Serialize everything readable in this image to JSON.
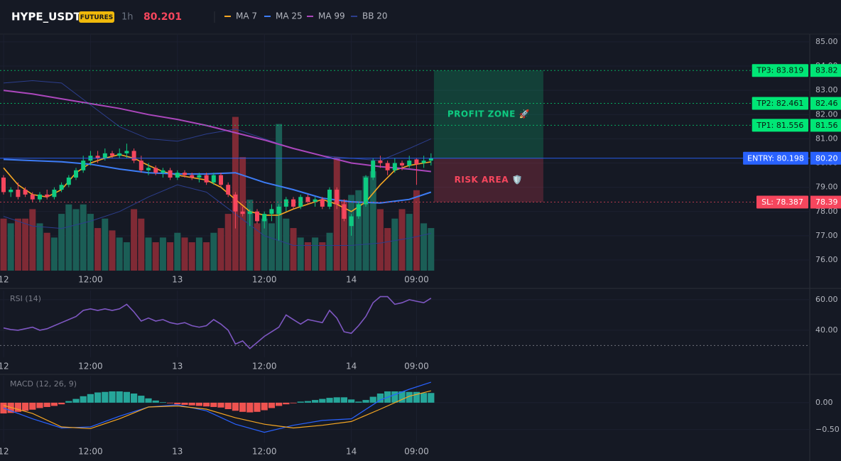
{
  "header": {
    "symbol": "HYPE_USDT",
    "badge": "FUTURES",
    "interval": "1h",
    "price": 80.201
  },
  "chart_data": [
    {
      "type": "candlestick",
      "xlim": [
        -0.49,
        111.27
      ],
      "xticks": [
        {
          "value": 0,
          "label": "12"
        },
        {
          "value": 12,
          "label": "12:00"
        },
        {
          "value": 24,
          "label": "13"
        },
        {
          "value": 36,
          "label": "12:00"
        },
        {
          "value": 48,
          "label": "14"
        },
        {
          "value": 57,
          "label": "09:00"
        }
      ],
      "ylim": [
        75.56,
        85.32
      ],
      "yticks": [
        {
          "value": 85,
          "label": "85.00"
        },
        {
          "value": 84,
          "label": "84.00"
        },
        {
          "value": 83,
          "label": "83.00"
        },
        {
          "value": 82,
          "label": "82.00"
        },
        {
          "value": 81,
          "label": "81.00"
        },
        {
          "value": 80,
          "label": "80.00"
        },
        {
          "value": 79,
          "label": "79.00"
        },
        {
          "value": 78,
          "label": "78.00"
        },
        {
          "value": 77,
          "label": "77.00"
        },
        {
          "value": 76,
          "label": "76.00"
        }
      ],
      "grid": true,
      "up_color": "#0ecb81",
      "down_color": "#f6465d",
      "x": [
        0,
        1,
        2,
        3,
        4,
        5,
        6,
        7,
        8,
        9,
        10,
        11,
        12,
        13,
        14,
        15,
        16,
        17,
        18,
        19,
        20,
        21,
        22,
        23,
        24,
        25,
        26,
        27,
        28,
        29,
        30,
        31,
        32,
        33,
        34,
        35,
        36,
        37,
        38,
        39,
        40,
        41,
        42,
        43,
        44,
        45,
        46,
        47,
        48,
        49,
        50,
        51,
        52,
        53,
        54,
        55,
        56,
        57,
        58,
        59
      ],
      "open": [
        79.4,
        78.8,
        78.9,
        78.9,
        78.7,
        78.5,
        78.7,
        78.6,
        78.9,
        79.1,
        79.4,
        79.7,
        80.1,
        80.3,
        80.2,
        80.4,
        80.3,
        80.4,
        80.5,
        80.1,
        79.7,
        79.8,
        79.6,
        79.7,
        79.4,
        79.6,
        79.5,
        79.4,
        79.5,
        79.2,
        79.5,
        79.1,
        78.7,
        78.0,
        77.9,
        78.0,
        77.6,
        77.9,
        77.9,
        78.2,
        78.5,
        78.2,
        78.6,
        78.4,
        78.5,
        78.2,
        78.9,
        78.3,
        77.4,
        77.8,
        78.3,
        79.4,
        80.1,
        80.0,
        79.7,
        80.0,
        79.9,
        80.15,
        80.0,
        80.1
      ],
      "high": [
        79.5,
        79.0,
        79.2,
        79.0,
        78.8,
        78.8,
        78.9,
        79.0,
        79.2,
        79.5,
        79.8,
        80.3,
        80.5,
        80.5,
        80.6,
        80.5,
        80.6,
        80.8,
        80.6,
        80.3,
        80.0,
        79.9,
        79.8,
        79.8,
        79.7,
        79.7,
        79.6,
        79.6,
        79.6,
        79.6,
        79.6,
        79.2,
        78.8,
        78.2,
        78.1,
        78.1,
        78.0,
        78.3,
        78.3,
        78.6,
        78.6,
        78.7,
        78.7,
        78.6,
        78.6,
        79.0,
        79.0,
        78.5,
        77.9,
        78.4,
        79.5,
        80.2,
        80.3,
        80.1,
        80.2,
        80.1,
        80.3,
        80.2,
        80.3,
        80.4
      ],
      "low": [
        78.7,
        78.6,
        78.5,
        78.6,
        78.4,
        78.4,
        78.5,
        78.5,
        78.8,
        79.0,
        79.3,
        79.6,
        79.9,
        80.0,
        80.1,
        80.2,
        80.2,
        80.2,
        80.0,
        79.6,
        79.5,
        79.5,
        79.4,
        79.3,
        79.3,
        79.4,
        79.3,
        79.2,
        79.1,
        79.1,
        79.0,
        78.6,
        77.3,
        77.8,
        77.4,
        77.5,
        77.3,
        77.6,
        76.8,
        78.0,
        78.1,
        78.1,
        78.3,
        78.2,
        78.1,
        78.1,
        78.1,
        77.6,
        77.0,
        77.7,
        78.2,
        79.3,
        79.8,
        79.5,
        79.6,
        79.7,
        79.8,
        79.1,
        79.8,
        79.9
      ],
      "close": [
        78.8,
        78.9,
        78.6,
        78.7,
        78.5,
        78.7,
        78.6,
        78.9,
        79.1,
        79.4,
        79.7,
        80.1,
        80.3,
        80.2,
        80.4,
        80.3,
        80.4,
        80.5,
        80.1,
        79.7,
        79.8,
        79.6,
        79.7,
        79.4,
        79.6,
        79.5,
        79.4,
        79.5,
        79.2,
        79.5,
        79.1,
        78.7,
        78.0,
        77.9,
        78.0,
        77.6,
        77.9,
        78.1,
        78.2,
        78.5,
        78.2,
        78.6,
        78.4,
        78.5,
        78.2,
        78.9,
        78.3,
        77.7,
        77.8,
        78.3,
        79.4,
        80.1,
        80.0,
        79.7,
        80.0,
        79.9,
        80.1,
        79.95,
        80.1,
        80.2
      ],
      "volume": [
        22,
        20,
        22,
        22,
        26,
        20,
        16,
        14,
        24,
        28,
        26,
        28,
        24,
        18,
        22,
        17,
        14,
        12,
        26,
        22,
        14,
        12,
        14,
        12,
        16,
        14,
        12,
        14,
        12,
        16,
        18,
        24,
        65,
        48,
        30,
        20,
        22,
        20,
        62,
        22,
        18,
        14,
        12,
        14,
        12,
        16,
        48,
        30,
        32,
        34,
        40,
        42,
        26,
        18,
        22,
        26,
        24,
        34,
        20,
        18
      ],
      "volume_lim": [
        0,
        100
      ],
      "volume_up_color": "#1b5e56",
      "volume_down_color": "#7f2a35",
      "series": [
        {
          "name": "MA 7",
          "color": "#f5a623",
          "x": [
            0,
            2,
            4,
            6,
            8,
            10,
            12,
            14,
            16,
            18,
            20,
            22,
            24,
            26,
            28,
            30,
            32,
            34,
            36,
            38,
            40,
            42,
            44,
            46,
            48,
            50,
            52,
            54,
            56,
            58,
            59
          ],
          "values": [
            79.8,
            79.1,
            78.7,
            78.6,
            78.9,
            79.6,
            80.0,
            80.2,
            80.35,
            80.2,
            79.9,
            79.65,
            79.5,
            79.4,
            79.3,
            79.0,
            78.5,
            78.0,
            77.85,
            77.85,
            78.1,
            78.3,
            78.5,
            78.3,
            78.0,
            78.4,
            79.1,
            79.7,
            79.9,
            80.0,
            80.05
          ]
        },
        {
          "name": "MA 25",
          "color": "#3d7cf5",
          "x": [
            0,
            4,
            8,
            12,
            16,
            20,
            24,
            28,
            32,
            36,
            40,
            44,
            48,
            52,
            56,
            59
          ],
          "values": [
            80.15,
            80.1,
            80.05,
            79.95,
            79.75,
            79.6,
            79.55,
            79.55,
            79.6,
            79.2,
            78.9,
            78.55,
            78.4,
            78.35,
            78.5,
            78.8
          ]
        },
        {
          "name": "MA 99",
          "color": "#ab47bc",
          "x": [
            0,
            4,
            8,
            12,
            16,
            20,
            24,
            28,
            32,
            36,
            40,
            44,
            48,
            52,
            56,
            59
          ],
          "values": [
            83.0,
            82.85,
            82.65,
            82.45,
            82.25,
            82.0,
            81.8,
            81.55,
            81.25,
            80.95,
            80.6,
            80.3,
            80.0,
            79.85,
            79.75,
            79.65
          ]
        },
        {
          "name": "BB 20",
          "color": "#2c3e8c",
          "x": [
            0,
            4,
            8,
            12,
            16,
            20,
            24,
            28,
            32,
            36,
            40,
            44,
            48,
            52,
            56,
            59
          ],
          "upper": [
            83.3,
            83.4,
            83.3,
            82.4,
            81.5,
            81.0,
            80.9,
            81.2,
            81.4,
            81.0,
            80.6,
            80.3,
            80.2,
            80.1,
            80.6,
            81.0
          ],
          "lower": [
            77.8,
            77.4,
            77.3,
            77.6,
            78.0,
            78.6,
            79.1,
            78.8,
            77.9,
            77.0,
            76.6,
            76.6,
            76.6,
            76.7,
            76.9,
            77.1
          ]
        }
      ],
      "levels": [
        {
          "label": "TP3: 83.819",
          "value": 83.819,
          "axis_label": "83.82",
          "color": "#00e676",
          "style": "dotted"
        },
        {
          "label": "TP2: 82.461",
          "value": 82.461,
          "axis_label": "82.46",
          "color": "#00e676",
          "style": "dotted"
        },
        {
          "label": "TP1: 81.556",
          "value": 81.556,
          "axis_label": "81.56",
          "color": "#00e676",
          "style": "dotted"
        },
        {
          "label": "ENTRY: 80.198",
          "value": 80.198,
          "axis_label": "80.20",
          "color": "#2962ff",
          "style": "solid"
        },
        {
          "label": "SL: 78.387",
          "value": 78.387,
          "axis_label": "78.39",
          "color": "#f6465d",
          "style": "dotted"
        }
      ],
      "zones": [
        {
          "label": "PROFIT ZONE 🚀",
          "x": [
            59.4,
            74.5
          ],
          "range": [
            80.198,
            83.819
          ],
          "color": "#0ecb81"
        },
        {
          "label": "RISK AREA 🛡️",
          "x": [
            59.4,
            74.5
          ],
          "range": [
            78.387,
            80.198
          ],
          "color": "#f6465d"
        }
      ]
    },
    {
      "type": "line",
      "title": "RSI (14)",
      "ylim": [
        22.3,
        66
      ],
      "yticks": [
        {
          "value": 60,
          "label": "60.00"
        },
        {
          "value": 40,
          "label": "40.00"
        }
      ],
      "hlines": [
        30
      ],
      "series": [
        {
          "name": "RSI",
          "color": "#7e57c2",
          "x": [
            0,
            1,
            2,
            3,
            4,
            5,
            6,
            7,
            8,
            9,
            10,
            11,
            12,
            13,
            14,
            15,
            16,
            17,
            18,
            19,
            20,
            21,
            22,
            23,
            24,
            25,
            26,
            27,
            28,
            29,
            30,
            31,
            32,
            33,
            34,
            35,
            36,
            37,
            38,
            39,
            40,
            41,
            42,
            43,
            44,
            45,
            46,
            47,
            48,
            49,
            50,
            51,
            52,
            53,
            54,
            55,
            56,
            57,
            58,
            59
          ],
          "values": [
            41.5,
            40.5,
            40,
            41,
            42,
            40,
            41,
            43,
            45,
            47,
            49,
            53,
            54,
            53,
            54,
            53,
            54,
            57,
            52,
            46,
            48,
            46,
            47,
            45,
            44,
            45,
            43,
            42,
            43,
            47,
            44,
            40,
            31,
            33,
            28,
            32,
            36,
            39,
            42,
            50,
            47,
            44,
            47,
            46,
            45,
            53,
            48,
            39,
            38,
            43,
            49,
            58,
            62,
            62,
            57,
            58,
            60,
            59,
            58,
            61
          ]
        }
      ]
    },
    {
      "type": "macd",
      "title": "MACD (12, 26, 9)",
      "ylim": [
        -0.74,
        0.5
      ],
      "yticks": [
        {
          "value": 0,
          "label": "0.00"
        },
        {
          "value": -0.5,
          "label": "−0.50"
        }
      ],
      "histogram": {
        "up_color": "#26a69a",
        "down_color": "#ef5350",
        "x": [
          0,
          1,
          2,
          3,
          4,
          5,
          6,
          7,
          8,
          9,
          10,
          11,
          12,
          13,
          14,
          15,
          16,
          17,
          18,
          19,
          20,
          21,
          22,
          23,
          24,
          25,
          26,
          27,
          28,
          29,
          30,
          31,
          32,
          33,
          34,
          35,
          36,
          37,
          38,
          39,
          40,
          41,
          42,
          43,
          44,
          45,
          46,
          47,
          48,
          49,
          50,
          51,
          52,
          53,
          54,
          55,
          56,
          57,
          58,
          59
        ],
        "values": [
          -0.2,
          -0.19,
          -0.17,
          -0.15,
          -0.13,
          -0.1,
          -0.08,
          -0.06,
          -0.03,
          0.03,
          0.07,
          0.12,
          0.16,
          0.19,
          0.2,
          0.21,
          0.21,
          0.2,
          0.17,
          0.13,
          0.08,
          0.04,
          0.01,
          -0.01,
          -0.03,
          -0.04,
          -0.05,
          -0.06,
          -0.07,
          -0.08,
          -0.09,
          -0.12,
          -0.15,
          -0.17,
          -0.18,
          -0.17,
          -0.14,
          -0.1,
          -0.06,
          -0.03,
          -0.01,
          0.02,
          0.03,
          0.05,
          0.07,
          0.09,
          0.1,
          0.1,
          0.06,
          0.02,
          0.05,
          0.11,
          0.17,
          0.21,
          0.21,
          0.21,
          0.2,
          0.2,
          0.18,
          0.18
        ]
      },
      "series": [
        {
          "name": "MACD",
          "color": "#2962ff",
          "x": [
            0,
            4,
            8,
            12,
            16,
            20,
            24,
            28,
            32,
            36,
            40,
            44,
            48,
            52,
            56,
            59
          ],
          "values": [
            -0.1,
            -0.3,
            -0.47,
            -0.45,
            -0.25,
            -0.08,
            -0.04,
            -0.15,
            -0.4,
            -0.55,
            -0.42,
            -0.33,
            -0.3,
            0.05,
            0.25,
            0.38
          ]
        },
        {
          "name": "Signal",
          "color": "#f5a623",
          "x": [
            0,
            4,
            8,
            12,
            16,
            20,
            24,
            28,
            32,
            36,
            40,
            44,
            48,
            52,
            56,
            59
          ],
          "values": [
            -0.05,
            -0.2,
            -0.45,
            -0.48,
            -0.3,
            -0.08,
            -0.06,
            -0.12,
            -0.28,
            -0.4,
            -0.47,
            -0.42,
            -0.35,
            -0.12,
            0.12,
            0.22
          ]
        }
      ]
    }
  ]
}
